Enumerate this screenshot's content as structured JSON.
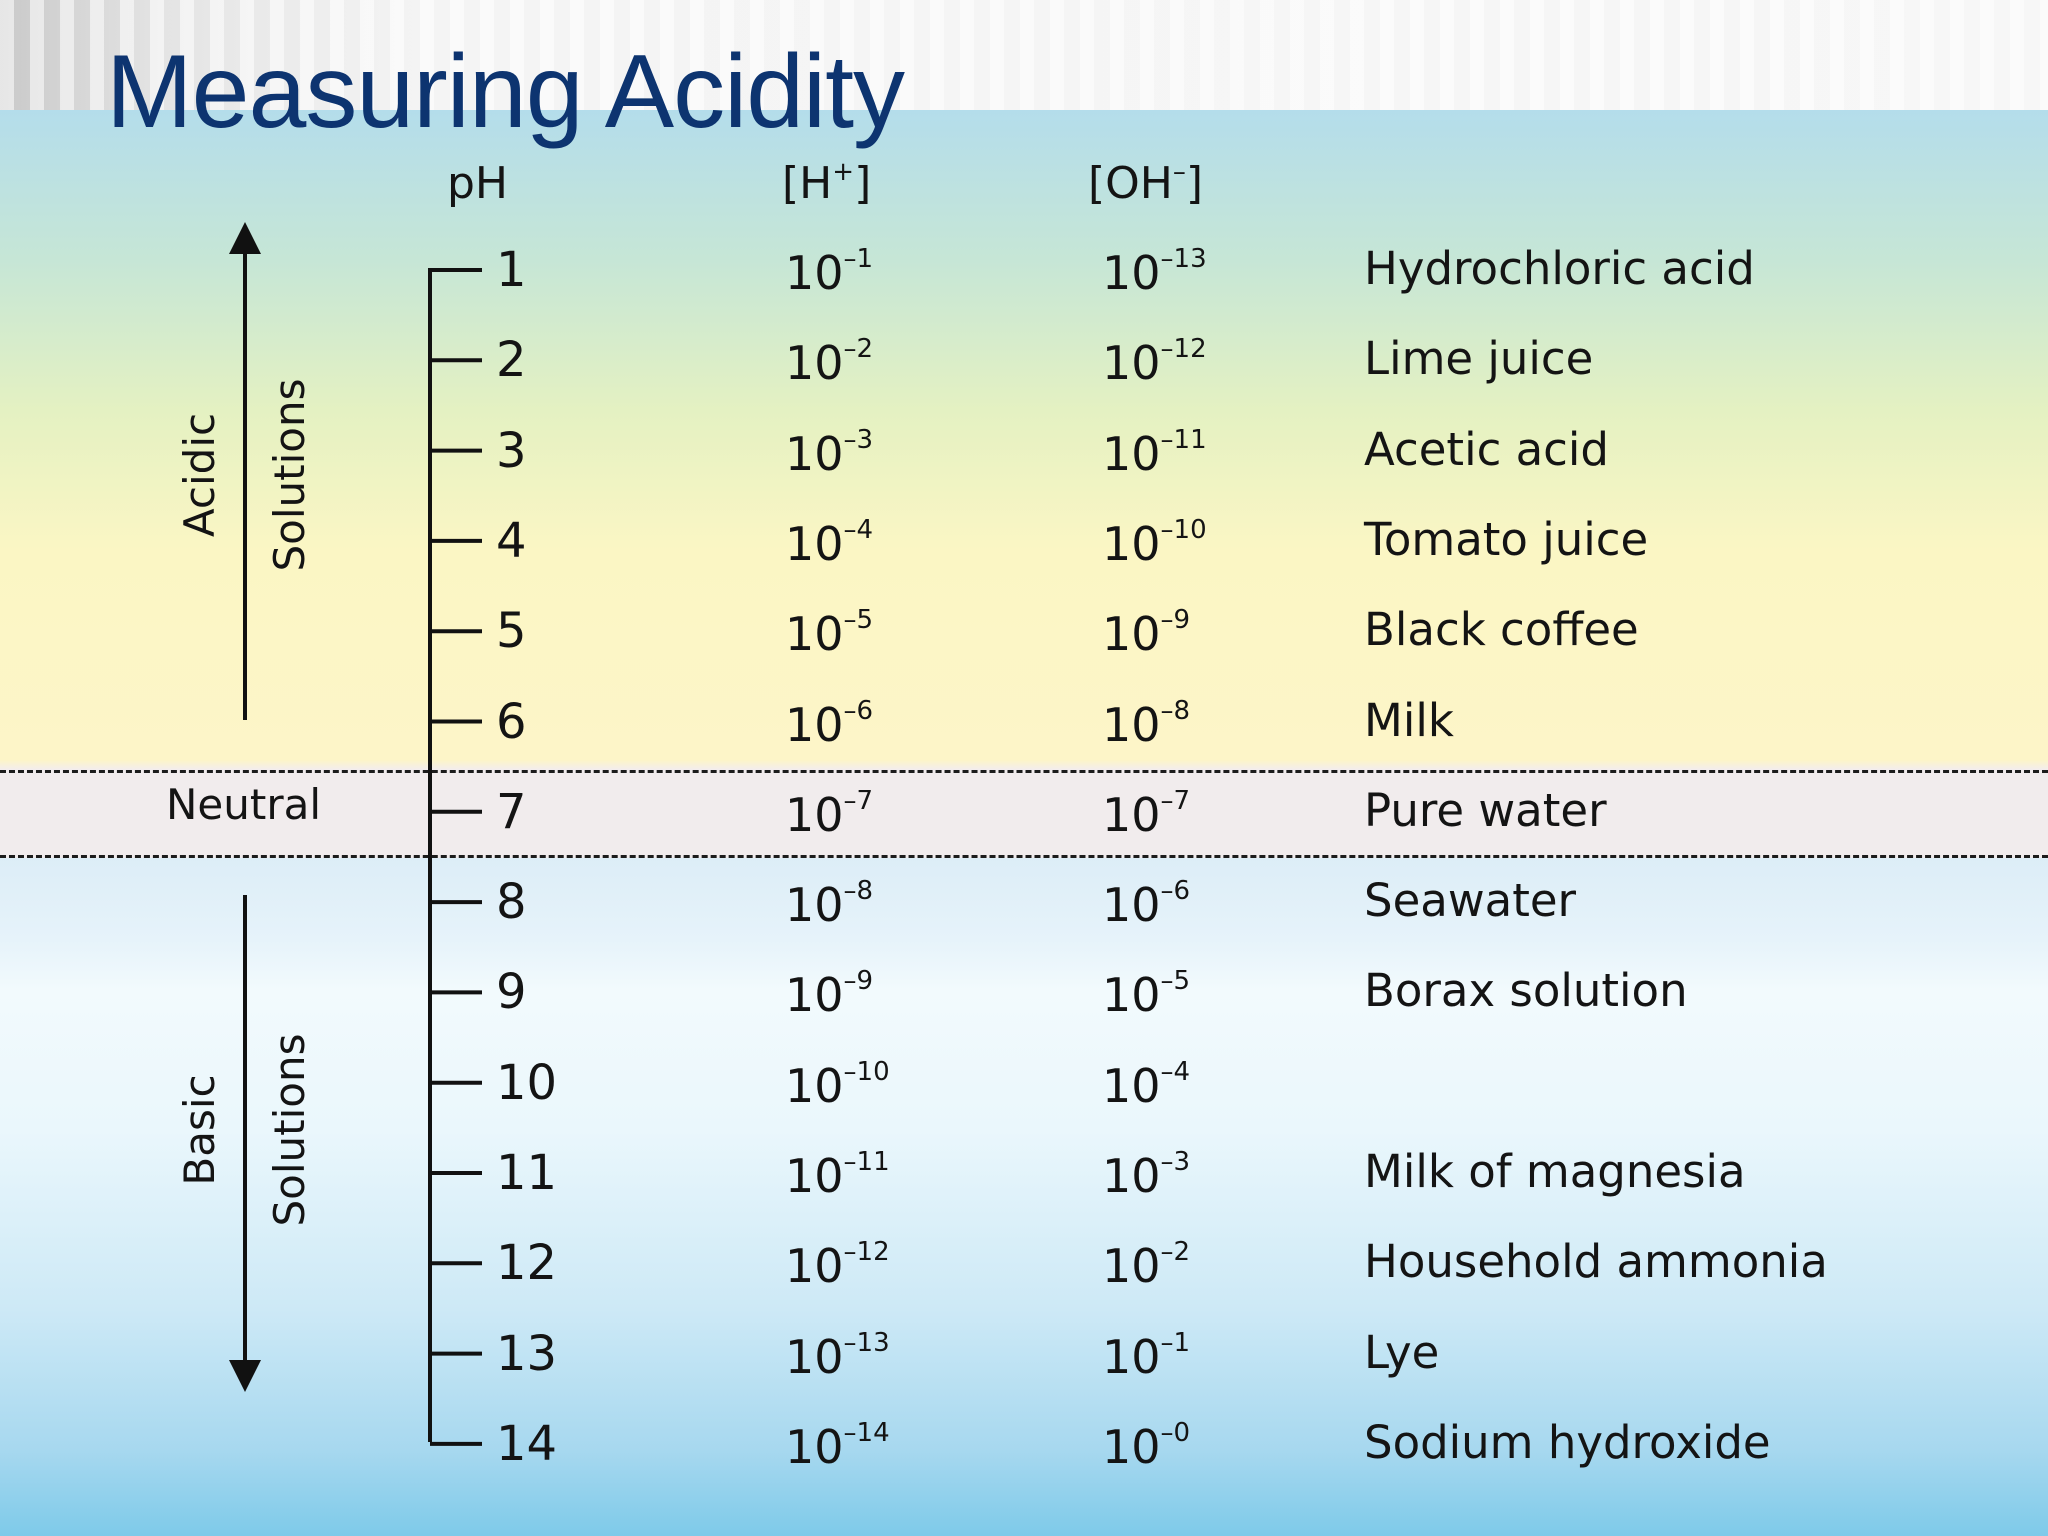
{
  "title": "Measuring Acidity",
  "headers": {
    "ph": "pH",
    "h": {
      "base": "[H",
      "sup": "+",
      "close": "]"
    },
    "oh": {
      "base": "[OH",
      "sup": "–",
      "close": "]"
    }
  },
  "labels": {
    "acidic": "Acidic",
    "acidic_solutions": "Solutions",
    "neutral": "Neutral",
    "basic": "Basic",
    "basic_solutions": "Solutions"
  },
  "rows": [
    {
      "ph": "1",
      "h_base": "10",
      "h_exp": "–1",
      "oh_base": "10",
      "oh_exp": "–13",
      "substance": "Hydrochloric acid"
    },
    {
      "ph": "2",
      "h_base": "10",
      "h_exp": "–2",
      "oh_base": "10",
      "oh_exp": "–12",
      "substance": "Lime juice"
    },
    {
      "ph": "3",
      "h_base": "10",
      "h_exp": "–3",
      "oh_base": "10",
      "oh_exp": "–11",
      "substance": "Acetic acid"
    },
    {
      "ph": "4",
      "h_base": "10",
      "h_exp": "–4",
      "oh_base": "10",
      "oh_exp": "–10",
      "substance": "Tomato juice"
    },
    {
      "ph": "5",
      "h_base": "10",
      "h_exp": "–5",
      "oh_base": "10",
      "oh_exp": "–9",
      "substance": "Black coffee"
    },
    {
      "ph": "6",
      "h_base": "10",
      "h_exp": "–6",
      "oh_base": "10",
      "oh_exp": "–8",
      "substance": "Milk"
    },
    {
      "ph": "7",
      "h_base": "10",
      "h_exp": "–7",
      "oh_base": "10",
      "oh_exp": "–7",
      "substance": "Pure water"
    },
    {
      "ph": "8",
      "h_base": "10",
      "h_exp": "–8",
      "oh_base": "10",
      "oh_exp": "–6",
      "substance": "Seawater"
    },
    {
      "ph": "9",
      "h_base": "10",
      "h_exp": "–9",
      "oh_base": "10",
      "oh_exp": "–5",
      "substance": "Borax solution"
    },
    {
      "ph": "10",
      "h_base": "10",
      "h_exp": "–10",
      "oh_base": "10",
      "oh_exp": "–4",
      "substance": ""
    },
    {
      "ph": "11",
      "h_base": "10",
      "h_exp": "–11",
      "oh_base": "10",
      "oh_exp": "–3",
      "substance": "Milk of magnesia"
    },
    {
      "ph": "12",
      "h_base": "10",
      "h_exp": "–12",
      "oh_base": "10",
      "oh_exp": "–2",
      "substance": "Household ammonia"
    },
    {
      "ph": "13",
      "h_base": "10",
      "h_exp": "–13",
      "oh_base": "10",
      "oh_exp": "–1",
      "substance": "Lye"
    },
    {
      "ph": "14",
      "h_base": "10",
      "h_exp": "–14",
      "oh_base": "10",
      "oh_exp": "–0",
      "substance": "Sodium hydroxide"
    }
  ],
  "colors": {
    "title": "#0d3470",
    "text": "#141414",
    "neutral_band": "#f1eced"
  }
}
